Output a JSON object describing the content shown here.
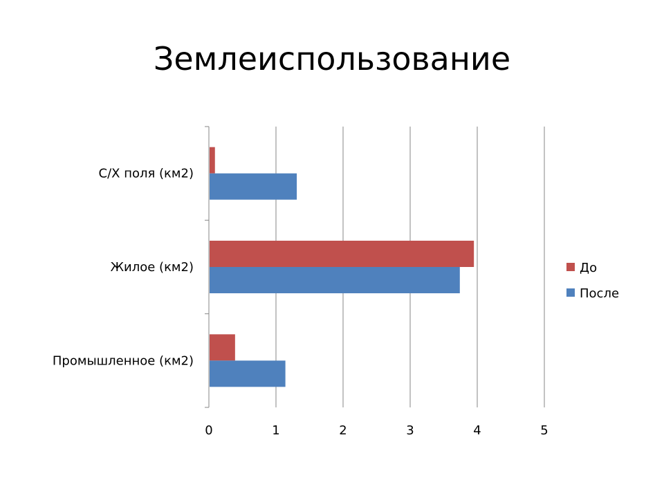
{
  "chart_data": {
    "type": "bar",
    "orientation": "horizontal",
    "title": "Землеиспользование",
    "categories": [
      "С/Х поля (км2)",
      "Жилое (км2)",
      "Промышленное (км2)"
    ],
    "series": [
      {
        "name": "До",
        "color": "#c0504d",
        "values": [
          0.08,
          3.94,
          0.38
        ]
      },
      {
        "name": "После",
        "color": "#4f81bd",
        "values": [
          1.3,
          3.73,
          1.13
        ]
      }
    ],
    "xlim": [
      0,
      5
    ],
    "xticks": [
      "0",
      "1",
      "2",
      "3",
      "4",
      "5"
    ],
    "grid": true,
    "legend_position": "right"
  }
}
